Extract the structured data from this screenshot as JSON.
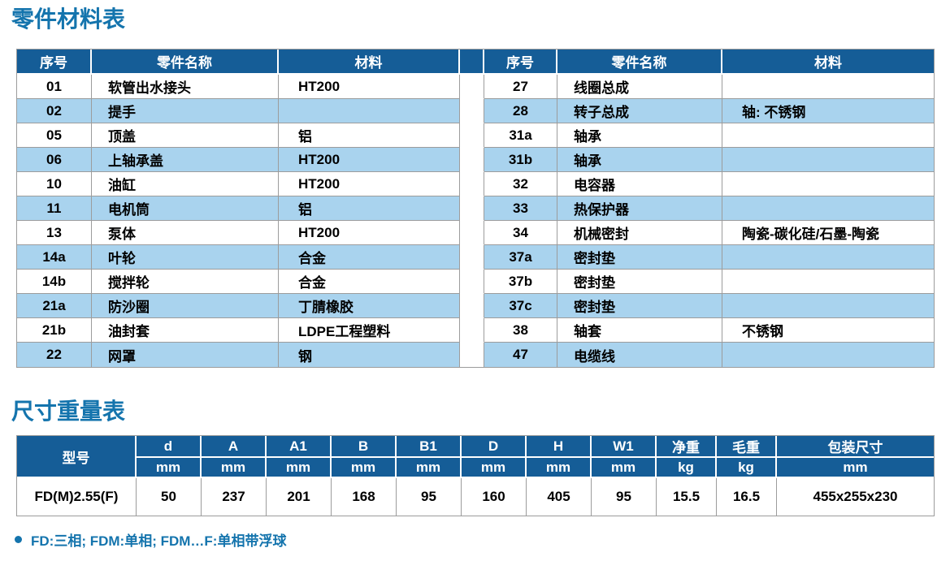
{
  "colors": {
    "header_bg": "#155d97",
    "stripe_bg": "#a9d3ee",
    "title_color": "#1474ad",
    "border_color": "#9c9c9c"
  },
  "sections": {
    "parts": {
      "title": "零件材料表",
      "headers": [
        "序号",
        "零件名称",
        "材料"
      ],
      "left_rows": [
        {
          "no": "01",
          "name": "软管出水接头",
          "material": "HT200"
        },
        {
          "no": "02",
          "name": "提手",
          "material": ""
        },
        {
          "no": "05",
          "name": "顶盖",
          "material": "铝"
        },
        {
          "no": "06",
          "name": "上轴承盖",
          "material": "HT200"
        },
        {
          "no": "10",
          "name": "油缸",
          "material": "HT200"
        },
        {
          "no": "11",
          "name": "电机筒",
          "material": "铝"
        },
        {
          "no": "13",
          "name": "泵体",
          "material": "HT200"
        },
        {
          "no": "14a",
          "name": "叶轮",
          "material": "合金"
        },
        {
          "no": "14b",
          "name": "搅拌轮",
          "material": "合金"
        },
        {
          "no": "21a",
          "name": "防沙圈",
          "material": "丁腈橡胶"
        },
        {
          "no": "21b",
          "name": "油封套",
          "material": "LDPE工程塑料"
        },
        {
          "no": "22",
          "name": "网罩",
          "material": "钢"
        }
      ],
      "right_rows": [
        {
          "no": "27",
          "name": "线圈总成",
          "material": ""
        },
        {
          "no": "28",
          "name": "转子总成",
          "material": "轴: 不锈钢"
        },
        {
          "no": "31a",
          "name": "轴承",
          "material": ""
        },
        {
          "no": "31b",
          "name": "轴承",
          "material": ""
        },
        {
          "no": "32",
          "name": "电容器",
          "material": ""
        },
        {
          "no": "33",
          "name": "热保护器",
          "material": ""
        },
        {
          "no": "34",
          "name": "机械密封",
          "material": "陶瓷-碳化硅/石墨-陶瓷"
        },
        {
          "no": "37a",
          "name": "密封垫",
          "material": ""
        },
        {
          "no": "37b",
          "name": "密封垫",
          "material": ""
        },
        {
          "no": "37c",
          "name": "密封垫",
          "material": ""
        },
        {
          "no": "38",
          "name": "轴套",
          "material": "不锈钢"
        },
        {
          "no": "47",
          "name": "电缆线",
          "material": ""
        }
      ]
    },
    "dims": {
      "title": "尺寸重量表",
      "model_header": "型号",
      "columns": [
        {
          "label": "d",
          "unit": "mm"
        },
        {
          "label": "A",
          "unit": "mm"
        },
        {
          "label": "A1",
          "unit": "mm"
        },
        {
          "label": "B",
          "unit": "mm"
        },
        {
          "label": "B1",
          "unit": "mm"
        },
        {
          "label": "D",
          "unit": "mm"
        },
        {
          "label": "H",
          "unit": "mm"
        },
        {
          "label": "W1",
          "unit": "mm"
        },
        {
          "label": "净重",
          "unit": "kg"
        },
        {
          "label": "毛重",
          "unit": "kg"
        },
        {
          "label": "包装尺寸",
          "unit": "mm"
        }
      ],
      "rows": [
        {
          "model": "FD(M)2.55(F)",
          "values": [
            "50",
            "237",
            "201",
            "168",
            "95",
            "160",
            "405",
            "95",
            "15.5",
            "16.5",
            "455x255x230"
          ]
        }
      ]
    }
  },
  "footnote": {
    "text": "FD:三相; FDM:单相; FDM…F:单相带浮球"
  }
}
